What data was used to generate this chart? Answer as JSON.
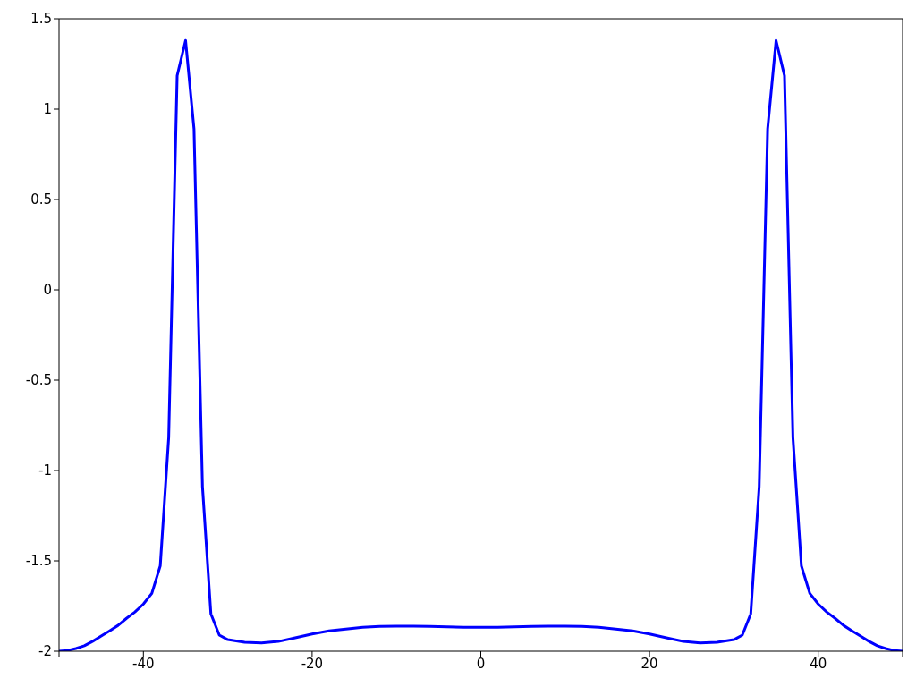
{
  "chart_data": {
    "type": "line",
    "x": [
      -50,
      -49,
      -48,
      -47,
      -46,
      -45,
      -44,
      -43,
      -42,
      -41,
      -40,
      -39,
      -38,
      -37,
      -36,
      -35,
      -34,
      -33,
      -32,
      -31,
      -30,
      -28,
      -26,
      -24,
      -22,
      -20,
      -18,
      -16,
      -14,
      -12,
      -10,
      -8,
      -6,
      -4,
      -2,
      0,
      2,
      4,
      6,
      8,
      10,
      12,
      14,
      16,
      18,
      20,
      22,
      24,
      26,
      28,
      30,
      31,
      32,
      33,
      34,
      35,
      36,
      37,
      38,
      39,
      40,
      41,
      42,
      43,
      44,
      45,
      46,
      47,
      48,
      49,
      50
    ],
    "series": [
      {
        "color": "#0000ff",
        "values": [
          -2.0,
          -1.996,
          -1.985,
          -1.97,
          -1.945,
          -1.916,
          -1.887,
          -1.857,
          -1.818,
          -1.783,
          -1.739,
          -1.68,
          -1.527,
          -0.817,
          1.185,
          1.38,
          0.89,
          -1.088,
          -1.793,
          -1.911,
          -1.936,
          -1.951,
          -1.954,
          -1.946,
          -1.926,
          -1.905,
          -1.887,
          -1.877,
          -1.868,
          -1.863,
          -1.861,
          -1.861,
          -1.863,
          -1.865,
          -1.868,
          -1.868,
          -1.868,
          -1.865,
          -1.863,
          -1.861,
          -1.861,
          -1.863,
          -1.868,
          -1.877,
          -1.887,
          -1.905,
          -1.926,
          -1.946,
          -1.954,
          -1.951,
          -1.936,
          -1.911,
          -1.793,
          -1.088,
          0.89,
          1.38,
          1.185,
          -0.817,
          -1.527,
          -1.68,
          -1.739,
          -1.783,
          -1.818,
          -1.857,
          -1.887,
          -1.916,
          -1.945,
          -1.97,
          -1.985,
          -1.996,
          -2.0
        ]
      }
    ],
    "xlim": [
      -50,
      50
    ],
    "xticks": [
      {
        "value": -50,
        "label": null
      },
      -40,
      -20,
      0,
      20,
      40,
      {
        "value": 50,
        "label": null
      }
    ],
    "ylim": [
      -2,
      1.5
    ],
    "yticks": [
      -2,
      -1.5,
      -1,
      -0.5,
      0,
      0.5,
      1,
      1.5
    ],
    "marker": "none",
    "line_style": "solid"
  }
}
